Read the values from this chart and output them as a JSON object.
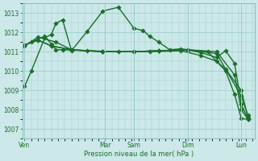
{
  "xlabel": "Pression niveau de la mer( hPa )",
  "ylim": [
    1006.5,
    1013.5
  ],
  "yticks": [
    1007,
    1008,
    1009,
    1010,
    1011,
    1012,
    1013
  ],
  "bg_color": "#cce8e8",
  "grid_color": "#99cccc",
  "line_color": "#1a6e2a",
  "day_labels": [
    "Ven",
    "Mar",
    "Sam",
    "Dim",
    "Lun"
  ],
  "day_positions": [
    0.0,
    0.36,
    0.49,
    0.73,
    0.97
  ],
  "lines": [
    {
      "x": [
        0.0,
        0.03,
        0.09,
        0.12,
        0.14,
        0.17,
        0.21,
        0.28,
        0.35,
        0.42,
        0.49,
        0.53,
        0.56,
        0.6,
        0.65,
        0.7,
        0.73,
        0.79,
        0.86,
        0.9,
        0.94,
        0.97,
        1.0
      ],
      "y": [
        1009.2,
        1010.0,
        1011.7,
        1011.9,
        1012.45,
        1012.65,
        1011.05,
        1012.05,
        1013.1,
        1013.3,
        1012.2,
        1012.1,
        1011.8,
        1011.5,
        1011.1,
        1011.15,
        1011.1,
        1010.95,
        1010.7,
        1011.05,
        1010.4,
        1008.3,
        1007.5
      ]
    },
    {
      "x": [
        0.0,
        0.03,
        0.09,
        0.12,
        0.14,
        0.17,
        0.28,
        0.42,
        0.56,
        0.7,
        0.79,
        0.86,
        0.9,
        0.97,
        1.0
      ],
      "y": [
        1011.3,
        1011.5,
        1011.8,
        1011.4,
        1011.1,
        1011.1,
        1011.05,
        1011.0,
        1011.0,
        1011.05,
        1010.8,
        1010.5,
        1010.1,
        1009.0,
        1007.6
      ]
    },
    {
      "x": [
        0.0,
        0.06,
        0.12,
        0.21,
        0.35,
        0.49,
        0.6,
        0.73,
        0.86,
        0.97,
        1.0
      ],
      "y": [
        1011.35,
        1011.6,
        1011.3,
        1011.1,
        1011.0,
        1011.0,
        1011.05,
        1011.1,
        1010.9,
        1008.7,
        1007.7
      ]
    },
    {
      "x": [
        0.0,
        0.06,
        0.12,
        0.21,
        0.35,
        0.49,
        0.6,
        0.73,
        0.86,
        0.94,
        0.97,
        1.0
      ],
      "y": [
        1011.35,
        1011.6,
        1011.3,
        1011.1,
        1011.0,
        1011.0,
        1011.05,
        1011.1,
        1011.0,
        1009.8,
        1008.0,
        1007.5
      ]
    },
    {
      "x": [
        0.0,
        0.06,
        0.14,
        0.21,
        0.35,
        0.49,
        0.6,
        0.73,
        0.82,
        0.9,
        0.94,
        0.97,
        1.0
      ],
      "y": [
        1011.3,
        1011.75,
        1011.5,
        1011.1,
        1011.0,
        1011.0,
        1011.05,
        1011.1,
        1011.0,
        1010.0,
        1008.8,
        1007.55,
        1007.5
      ]
    }
  ]
}
